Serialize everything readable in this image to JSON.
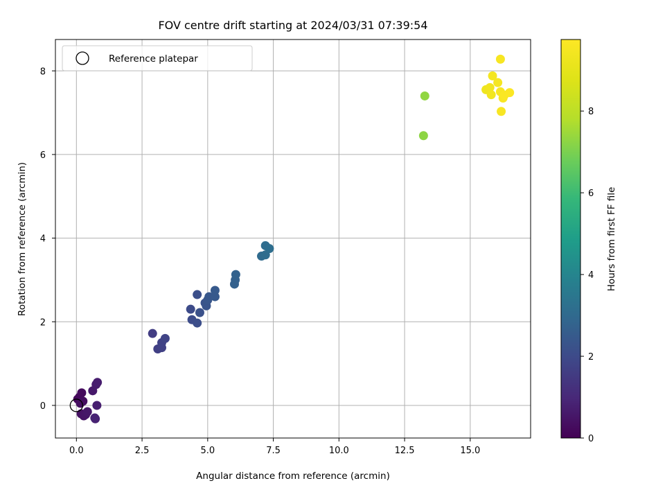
{
  "chart_data": {
    "type": "scatter",
    "title": "FOV centre drift starting at 2024/03/31 07:39:54",
    "xlabel": "Angular distance from reference (arcmin)",
    "ylabel": "Rotation from reference (arcmin)",
    "colorbar_label": "Hours from first FF file",
    "xlim": [
      -0.8,
      17.3
    ],
    "ylim": [
      -0.78,
      8.75
    ],
    "clim": [
      0,
      9.75
    ],
    "xticks": [
      "0.0",
      "2.5",
      "5.0",
      "7.5",
      "10.0",
      "12.5",
      "15.0"
    ],
    "yticks": [
      "0",
      "2",
      "4",
      "6",
      "8"
    ],
    "colorbar_ticks": [
      "0",
      "2",
      "4",
      "6",
      "8"
    ],
    "grid": true,
    "legend": {
      "position": "top-left",
      "entries": [
        "Reference platepar"
      ]
    },
    "reference_point": {
      "x": 0.0,
      "y": 0.0
    },
    "points": [
      {
        "x": 0.05,
        "y": 0.15,
        "h": 0.15
      },
      {
        "x": 0.12,
        "y": 0.2,
        "h": 0.2
      },
      {
        "x": 0.2,
        "y": 0.3,
        "h": 0.25
      },
      {
        "x": 0.25,
        "y": 0.1,
        "h": 0.3
      },
      {
        "x": 0.15,
        "y": 0.05,
        "h": 0.35
      },
      {
        "x": 0.18,
        "y": -0.2,
        "h": 0.4
      },
      {
        "x": 0.28,
        "y": -0.25,
        "h": 0.45
      },
      {
        "x": 0.35,
        "y": -0.22,
        "h": 0.5
      },
      {
        "x": 0.42,
        "y": -0.15,
        "h": 0.55
      },
      {
        "x": 0.62,
        "y": 0.35,
        "h": 0.6
      },
      {
        "x": 0.75,
        "y": 0.5,
        "h": 0.65
      },
      {
        "x": 0.8,
        "y": 0.55,
        "h": 0.7
      },
      {
        "x": 0.78,
        "y": 0.0,
        "h": 0.75
      },
      {
        "x": 0.72,
        "y": -0.32,
        "h": 0.8
      },
      {
        "x": 0.7,
        "y": -0.3,
        "h": 0.85
      },
      {
        "x": 2.9,
        "y": 1.72,
        "h": 1.6
      },
      {
        "x": 3.1,
        "y": 1.35,
        "h": 1.65
      },
      {
        "x": 3.25,
        "y": 1.38,
        "h": 1.7
      },
      {
        "x": 3.25,
        "y": 1.5,
        "h": 1.75
      },
      {
        "x": 3.38,
        "y": 1.6,
        "h": 1.8
      },
      {
        "x": 4.35,
        "y": 2.3,
        "h": 2.0
      },
      {
        "x": 4.4,
        "y": 2.05,
        "h": 2.05
      },
      {
        "x": 4.6,
        "y": 1.97,
        "h": 2.1
      },
      {
        "x": 4.6,
        "y": 2.65,
        "h": 2.15
      },
      {
        "x": 4.7,
        "y": 2.22,
        "h": 2.2
      },
      {
        "x": 4.9,
        "y": 2.45,
        "h": 2.25
      },
      {
        "x": 4.95,
        "y": 2.38,
        "h": 2.3
      },
      {
        "x": 5.0,
        "y": 2.52,
        "h": 2.35
      },
      {
        "x": 5.05,
        "y": 2.6,
        "h": 2.4
      },
      {
        "x": 5.28,
        "y": 2.6,
        "h": 2.45
      },
      {
        "x": 5.28,
        "y": 2.75,
        "h": 2.5
      },
      {
        "x": 6.02,
        "y": 2.9,
        "h": 2.7
      },
      {
        "x": 6.05,
        "y": 3.0,
        "h": 2.72
      },
      {
        "x": 6.07,
        "y": 3.13,
        "h": 2.75
      },
      {
        "x": 7.05,
        "y": 3.57,
        "h": 3.05
      },
      {
        "x": 7.2,
        "y": 3.6,
        "h": 3.1
      },
      {
        "x": 7.2,
        "y": 3.82,
        "h": 3.12
      },
      {
        "x": 7.35,
        "y": 3.75,
        "h": 3.15
      },
      {
        "x": 13.22,
        "y": 6.45,
        "h": 7.25
      },
      {
        "x": 13.27,
        "y": 7.4,
        "h": 7.3
      },
      {
        "x": 15.6,
        "y": 7.55,
        "h": 9.3
      },
      {
        "x": 15.75,
        "y": 7.6,
        "h": 9.35
      },
      {
        "x": 15.8,
        "y": 7.43,
        "h": 9.4
      },
      {
        "x": 15.85,
        "y": 7.88,
        "h": 9.45
      },
      {
        "x": 16.05,
        "y": 7.72,
        "h": 9.5
      },
      {
        "x": 16.15,
        "y": 8.28,
        "h": 9.55
      },
      {
        "x": 16.15,
        "y": 7.5,
        "h": 9.58
      },
      {
        "x": 16.18,
        "y": 7.03,
        "h": 9.6
      },
      {
        "x": 16.25,
        "y": 7.35,
        "h": 9.62
      },
      {
        "x": 16.3,
        "y": 7.42,
        "h": 9.65
      },
      {
        "x": 16.5,
        "y": 7.48,
        "h": 9.7
      }
    ]
  }
}
